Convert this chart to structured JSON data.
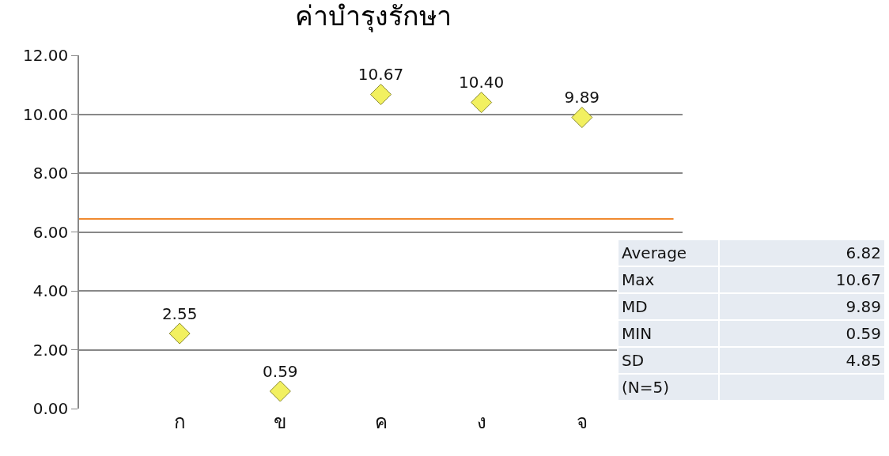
{
  "chart_data": {
    "type": "scatter",
    "title": "ค่าบำรุงรักษา",
    "categories": [
      "ก",
      "ข",
      "ค",
      "ง",
      "จ"
    ],
    "values": [
      2.55,
      0.59,
      10.67,
      10.4,
      9.89
    ],
    "value_labels": [
      "2.55",
      "0.59",
      "10.67",
      "10.40",
      "9.89"
    ],
    "color": "#f2f060",
    "marker": "diamond",
    "ylim": [
      0,
      12
    ],
    "yticks": [
      {
        "value": 0,
        "label": "0.00"
      },
      {
        "value": 2,
        "label": "2.00"
      },
      {
        "value": 4,
        "label": "4.00"
      },
      {
        "value": 6,
        "label": "6.00"
      },
      {
        "value": 8,
        "label": "8.00"
      },
      {
        "value": 10,
        "label": "10.00"
      },
      {
        "value": 12,
        "label": "12.00"
      }
    ],
    "grid": "y",
    "ref_lines": [
      {
        "axis": "y",
        "value": 6.44,
        "color": "#f08a30"
      }
    ],
    "annotations": [
      "Average",
      "6.82",
      "Max",
      "10.67",
      "MD",
      "9.89",
      "MIN",
      "0.59",
      "SD",
      "4.85",
      "(N=5)"
    ]
  }
}
